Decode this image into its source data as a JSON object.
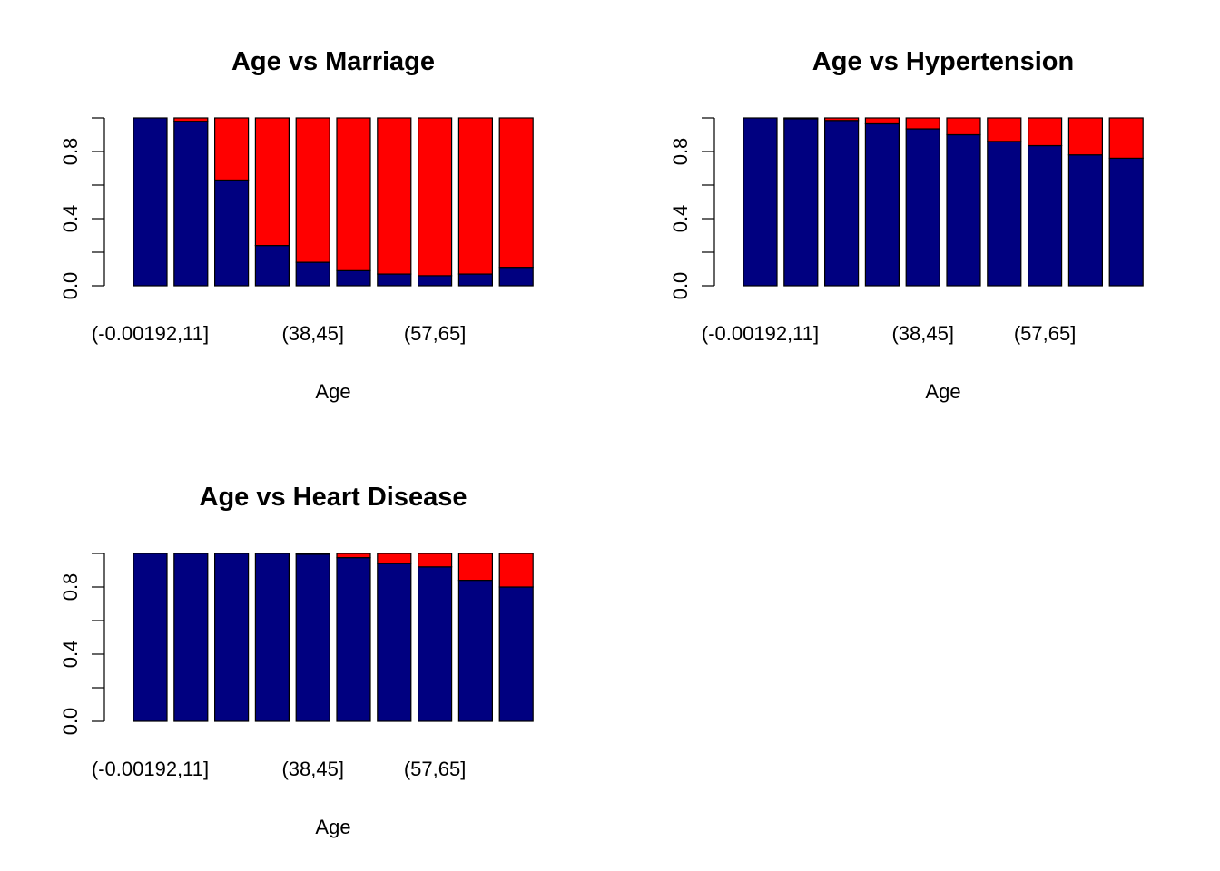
{
  "colors": {
    "bottom": "#000080",
    "top": "#ff0000",
    "border": "#000000"
  },
  "chart_data": [
    {
      "type": "bar",
      "stacked": true,
      "title": "Age vs Marriage",
      "xlabel": "Age",
      "ylabel": "",
      "ylim": [
        0,
        1
      ],
      "yticks": [
        "0.0",
        "0.4",
        "0.8"
      ],
      "xtick_labels": [
        "(-0.00192,11]",
        "(38,45]",
        "(57,65]"
      ],
      "xtick_positions": [
        0,
        4,
        7
      ],
      "categories_count": 10,
      "series": [
        {
          "color": "#000080",
          "values": [
            1.0,
            0.98,
            0.63,
            0.24,
            0.14,
            0.09,
            0.07,
            0.06,
            0.07,
            0.11
          ]
        },
        {
          "color": "#ff0000",
          "values": [
            0.0,
            0.02,
            0.37,
            0.76,
            0.86,
            0.91,
            0.93,
            0.94,
            0.93,
            0.89
          ]
        }
      ]
    },
    {
      "type": "bar",
      "stacked": true,
      "title": "Age vs Hypertension",
      "xlabel": "Age",
      "ylabel": "",
      "ylim": [
        0,
        1
      ],
      "yticks": [
        "0.0",
        "0.4",
        "0.8"
      ],
      "xtick_labels": [
        "(-0.00192,11]",
        "(38,45]",
        "(57,65]"
      ],
      "xtick_positions": [
        0,
        4,
        7
      ],
      "categories_count": 10,
      "series": [
        {
          "color": "#000080",
          "values": [
            1.0,
            0.995,
            0.985,
            0.965,
            0.935,
            0.9,
            0.86,
            0.835,
            0.78,
            0.76
          ]
        },
        {
          "color": "#ff0000",
          "values": [
            0.0,
            0.005,
            0.015,
            0.035,
            0.065,
            0.1,
            0.14,
            0.165,
            0.22,
            0.24
          ]
        }
      ]
    },
    {
      "type": "bar",
      "stacked": true,
      "title": "Age vs Heart Disease",
      "xlabel": "Age",
      "ylabel": "",
      "ylim": [
        0,
        1
      ],
      "yticks": [
        "0.0",
        "0.4",
        "0.8"
      ],
      "xtick_labels": [
        "(-0.00192,11]",
        "(38,45]",
        "(57,65]"
      ],
      "xtick_positions": [
        0,
        4,
        7
      ],
      "categories_count": 10,
      "series": [
        {
          "color": "#000080",
          "values": [
            1.0,
            1.0,
            1.0,
            1.0,
            0.995,
            0.975,
            0.94,
            0.92,
            0.84,
            0.8
          ]
        },
        {
          "color": "#ff0000",
          "values": [
            0.0,
            0.0,
            0.0,
            0.0,
            0.005,
            0.025,
            0.06,
            0.08,
            0.16,
            0.2
          ]
        }
      ]
    }
  ]
}
